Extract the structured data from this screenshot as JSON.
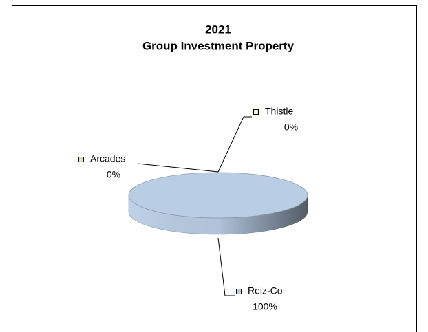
{
  "chart_data": {
    "type": "pie3d",
    "title": "2021",
    "subtitle": "Group Investment Property",
    "categories": [
      "Thistle",
      "Arcades",
      "Reiz-Co"
    ],
    "values": [
      0,
      0,
      100
    ],
    "value_labels": [
      "0%",
      "0%",
      "100%"
    ],
    "colors": [
      "#f2f2c4",
      "#d7e4bd",
      "#b9cde5"
    ]
  }
}
